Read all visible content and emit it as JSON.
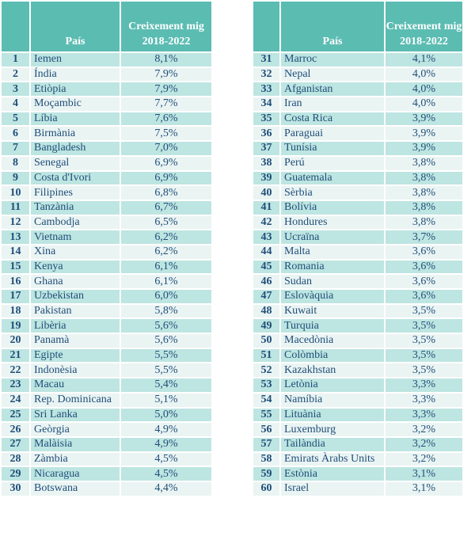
{
  "headers": {
    "rank": "",
    "country": "País",
    "growth": "Creixement mig 2018-2022"
  },
  "colors": {
    "header": "#5bbcb2",
    "row_odd": "#bde5e1",
    "row_even": "#eaf4f3",
    "text": "#1f4e79"
  },
  "rows": [
    [
      "1",
      "Iemen",
      "8,1%"
    ],
    [
      "2",
      "Índia",
      "7,9%"
    ],
    [
      "3",
      "Etiòpia",
      "7,9%"
    ],
    [
      "4",
      "Moçambic",
      "7,7%"
    ],
    [
      "5",
      "Líbia",
      "7,6%"
    ],
    [
      "6",
      "Birmània",
      "7,5%"
    ],
    [
      "7",
      "Bangladesh",
      "7,0%"
    ],
    [
      "8",
      "Senegal",
      "6,9%"
    ],
    [
      "9",
      "Costa d'Ivori",
      "6,9%"
    ],
    [
      "10",
      "Filipines",
      "6,8%"
    ],
    [
      "11",
      "Tanzània",
      "6,7%"
    ],
    [
      "12",
      "Cambodja",
      "6,5%"
    ],
    [
      "13",
      "Vietnam",
      "6,2%"
    ],
    [
      "14",
      "Xina",
      "6,2%"
    ],
    [
      "15",
      "Kenya",
      "6,1%"
    ],
    [
      "16",
      "Ghana",
      "6,1%"
    ],
    [
      "17",
      "Uzbekistan",
      "6,0%"
    ],
    [
      "18",
      "Pakistan",
      "5,8%"
    ],
    [
      "19",
      "Libèria",
      "5,6%"
    ],
    [
      "20",
      "Panamà",
      "5,6%"
    ],
    [
      "21",
      "Egipte",
      "5,5%"
    ],
    [
      "22",
      "Indonèsia",
      "5,5%"
    ],
    [
      "23",
      "Macau",
      "5,4%"
    ],
    [
      "24",
      "Rep. Dominicana",
      "5,1%"
    ],
    [
      "25",
      "Sri Lanka",
      "5,0%"
    ],
    [
      "26",
      "Geòrgia",
      "4,9%"
    ],
    [
      "27",
      "Malàisia",
      "4,9%"
    ],
    [
      "28",
      "Zàmbia",
      "4,5%"
    ],
    [
      "29",
      "Nicaragua",
      "4,5%"
    ],
    [
      "30",
      "Botswana",
      "4,4%"
    ],
    [
      "31",
      "Marroc",
      "4,1%"
    ],
    [
      "32",
      "Nepal",
      "4,0%"
    ],
    [
      "33",
      "Afganistan",
      "4,0%"
    ],
    [
      "34",
      "Iran",
      "4,0%"
    ],
    [
      "35",
      "Costa Rica",
      "3,9%"
    ],
    [
      "36",
      "Paraguai",
      "3,9%"
    ],
    [
      "37",
      "Tunísia",
      "3,9%"
    ],
    [
      "38",
      "Perú",
      "3,8%"
    ],
    [
      "39",
      "Guatemala",
      "3,8%"
    ],
    [
      "40",
      "Sèrbia",
      "3,8%"
    ],
    [
      "41",
      "Bolívia",
      "3,8%"
    ],
    [
      "42",
      "Hondures",
      "3,8%"
    ],
    [
      "43",
      "Ucraïna",
      "3,7%"
    ],
    [
      "44",
      "Malta",
      "3,6%"
    ],
    [
      "45",
      "Romania",
      "3,6%"
    ],
    [
      "46",
      "Sudan",
      "3,6%"
    ],
    [
      "47",
      "Eslovàquia",
      "3,6%"
    ],
    [
      "48",
      "Kuwait",
      "3,5%"
    ],
    [
      "49",
      "Turquia",
      "3,5%"
    ],
    [
      "50",
      "Macedònia",
      "3,5%"
    ],
    [
      "51",
      "Colòmbia",
      "3,5%"
    ],
    [
      "52",
      "Kazakhstan",
      "3,5%"
    ],
    [
      "53",
      "Letònia",
      "3,3%"
    ],
    [
      "54",
      "Namíbia",
      "3,3%"
    ],
    [
      "55",
      "Lituània",
      "3,3%"
    ],
    [
      "56",
      "Luxemburg",
      "3,2%"
    ],
    [
      "57",
      "Tailàndia",
      "3,2%"
    ],
    [
      "58",
      "Emirats Àrabs Units",
      "3,2%"
    ],
    [
      "59",
      "Estònia",
      "3,1%"
    ],
    [
      "60",
      "Israel",
      "3,1%"
    ]
  ]
}
